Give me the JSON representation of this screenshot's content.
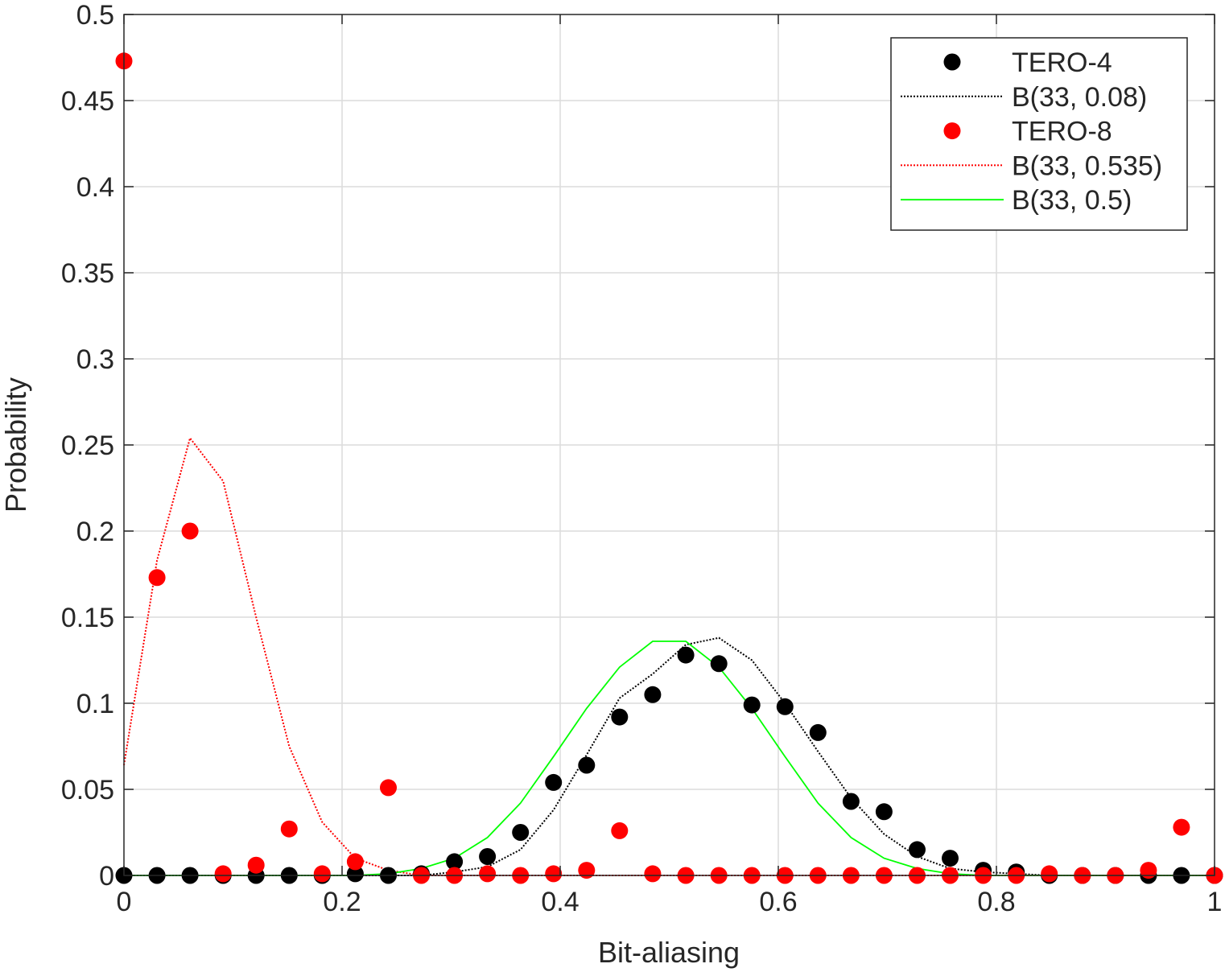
{
  "chart_data": {
    "type": "scatter",
    "xlabel": "Bit-aliasing",
    "ylabel": "Probability",
    "xlim": [
      0,
      1
    ],
    "ylim": [
      0,
      0.5
    ],
    "x_ticks": [
      0,
      0.2,
      0.4,
      0.6,
      0.8,
      1
    ],
    "x_tick_labels": [
      "0",
      "0.2",
      "0.4",
      "0.6",
      "0.8",
      "1"
    ],
    "y_ticks": [
      0,
      0.05,
      0.1,
      0.15,
      0.2,
      0.25,
      0.3,
      0.35,
      0.4,
      0.45,
      0.5
    ],
    "y_tick_labels": [
      "0",
      "0.05",
      "0.1",
      "0.15",
      "0.2",
      "0.25",
      "0.3",
      "0.35",
      "0.4",
      "0.45",
      "0.5"
    ],
    "grid": true,
    "legend_position": "top-right",
    "x": [
      0,
      0.0303,
      0.0606,
      0.0909,
      0.1212,
      0.1515,
      0.1818,
      0.2121,
      0.2424,
      0.2727,
      0.303,
      0.3333,
      0.3636,
      0.3939,
      0.4242,
      0.4545,
      0.4848,
      0.5152,
      0.5455,
      0.5758,
      0.6061,
      0.6364,
      0.6667,
      0.697,
      0.7273,
      0.7576,
      0.7879,
      0.8182,
      0.8485,
      0.8788,
      0.9091,
      0.9394,
      0.9697,
      1
    ],
    "series": [
      {
        "name": "TERO-4",
        "style": "markers",
        "color": "#000000",
        "values": [
          0,
          0,
          0,
          0,
          0,
          0,
          0,
          0.001,
          0,
          0.001,
          0.008,
          0.011,
          0.025,
          0.054,
          0.064,
          0.092,
          0.105,
          0.128,
          0.123,
          0.099,
          0.098,
          0.083,
          0.043,
          0.037,
          0.015,
          0.01,
          0.003,
          0.002,
          0,
          0,
          0,
          0,
          0,
          0
        ]
      },
      {
        "name": "B(33, 0.08)",
        "style": "dotted-line",
        "color": "#000000",
        "values": [
          0,
          0,
          0,
          0,
          0,
          0,
          0,
          0,
          0,
          0,
          0.002,
          0.005,
          0.015,
          0.038,
          0.07,
          0.103,
          0.117,
          0.134,
          0.138,
          0.125,
          0.1,
          0.072,
          0.045,
          0.024,
          0.011,
          0.004,
          0.002,
          0.001,
          0,
          0,
          0,
          0,
          0,
          0
        ]
      },
      {
        "name": "TERO-8",
        "style": "markers",
        "color": "#ff0000",
        "values": [
          0.473,
          0.173,
          0.2,
          0.001,
          0.006,
          0.027,
          0.001,
          0.008,
          0.051,
          0,
          0,
          0.001,
          0,
          0.001,
          0.003,
          0.026,
          0.001,
          0,
          0,
          0,
          0,
          0,
          0,
          0,
          0,
          0,
          0,
          0,
          0.001,
          0,
          0,
          0.003,
          0.028,
          0
        ]
      },
      {
        "name": "B(33, 0.535)",
        "style": "dotted-line",
        "color": "#ff0000",
        "values": [
          0.064,
          0.183,
          0.254,
          0.229,
          0.15,
          0.075,
          0.031,
          0.01,
          0.003,
          0,
          0,
          0,
          0,
          0,
          0,
          0,
          0,
          0,
          0,
          0,
          0,
          0,
          0,
          0,
          0,
          0,
          0,
          0,
          0,
          0,
          0,
          0,
          0,
          0
        ]
      },
      {
        "name": "B(33, 0.5)",
        "style": "solid-line",
        "color": "#00ff00",
        "values": [
          0,
          0,
          0,
          0,
          0,
          0,
          0,
          0,
          0.001,
          0.004,
          0.01,
          0.022,
          0.042,
          0.069,
          0.097,
          0.121,
          0.136,
          0.136,
          0.121,
          0.097,
          0.069,
          0.042,
          0.022,
          0.01,
          0.004,
          0.001,
          0,
          0,
          0,
          0,
          0,
          0,
          0,
          0
        ]
      }
    ]
  }
}
